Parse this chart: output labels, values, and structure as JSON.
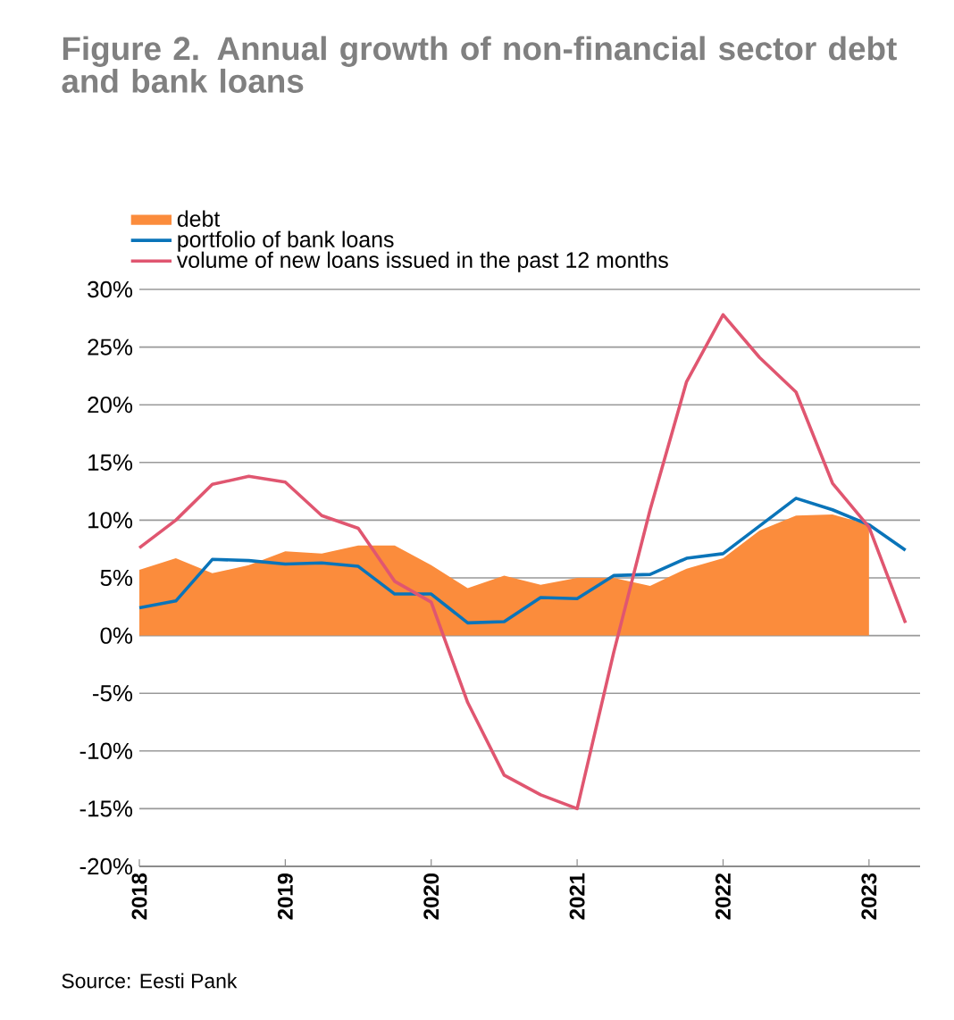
{
  "chart_data": {
    "type": "line",
    "title": "Figure 2. Annual growth of non-financial sector debt and bank loans",
    "x": [
      2018.0,
      2018.25,
      2018.5,
      2018.75,
      2019.0,
      2019.25,
      2019.5,
      2019.75,
      2020.0,
      2020.25,
      2020.5,
      2020.75,
      2021.0,
      2021.25,
      2021.5,
      2021.75,
      2022.0,
      2022.25,
      2022.5,
      2022.75,
      2023.0,
      2023.25
    ],
    "series": [
      {
        "name": "debt",
        "type": "area",
        "color": "#fb8c3c",
        "x": [
          2018.0,
          2018.25,
          2018.5,
          2018.75,
          2019.0,
          2019.25,
          2019.5,
          2019.75,
          2020.0,
          2020.25,
          2020.5,
          2020.75,
          2021.0,
          2021.25,
          2021.5,
          2021.75,
          2022.0,
          2022.25,
          2022.5,
          2022.75,
          2023.0
        ],
        "values": [
          5.7,
          6.7,
          5.4,
          6.1,
          7.3,
          7.1,
          7.8,
          7.8,
          6.1,
          4.1,
          5.2,
          4.4,
          5.0,
          5.0,
          4.3,
          5.8,
          6.7,
          9.1,
          10.4,
          10.5,
          9.6
        ]
      },
      {
        "name": "portfolio of bank loans",
        "color": "#0a74b9",
        "values": [
          2.4,
          3.0,
          6.6,
          6.5,
          6.2,
          6.3,
          6.0,
          3.6,
          3.6,
          1.1,
          1.2,
          3.3,
          3.2,
          5.2,
          5.3,
          6.7,
          7.1,
          9.5,
          11.9,
          10.9,
          9.6,
          7.4
        ]
      },
      {
        "name": "volume of new loans issued in the past 12 months",
        "color": "#e05670",
        "values": [
          7.6,
          10.0,
          13.1,
          13.8,
          13.3,
          10.4,
          9.3,
          4.7,
          2.9,
          -5.8,
          -12.1,
          -13.8,
          -15.0,
          -1.5,
          10.9,
          22.0,
          27.8,
          24.1,
          21.1,
          13.2,
          9.4,
          1.1
        ]
      }
    ],
    "xlim": [
      2018,
      2023.35
    ],
    "xticks": [
      2018,
      2019,
      2020,
      2021,
      2022,
      2023
    ],
    "ylim": [
      -20,
      30
    ],
    "yticks": [
      {
        "value": -20,
        "label": "-20%"
      },
      {
        "value": -15,
        "label": "-15%"
      },
      {
        "value": -10,
        "label": "-10%"
      },
      {
        "value": -5,
        "label": "-5%"
      },
      {
        "value": 0,
        "label": "0%"
      },
      {
        "value": 5,
        "label": "5%"
      },
      {
        "value": 10,
        "label": "10%"
      },
      {
        "value": 15,
        "label": "15%"
      },
      {
        "value": 20,
        "label": "20%"
      },
      {
        "value": 25,
        "label": "25%"
      },
      {
        "value": 30,
        "label": "30%"
      }
    ],
    "grid": "y",
    "legend": "top left",
    "line_style": "solid",
    "marker": "none",
    "annotations": [
      "Source: Eesti Pank"
    ]
  }
}
